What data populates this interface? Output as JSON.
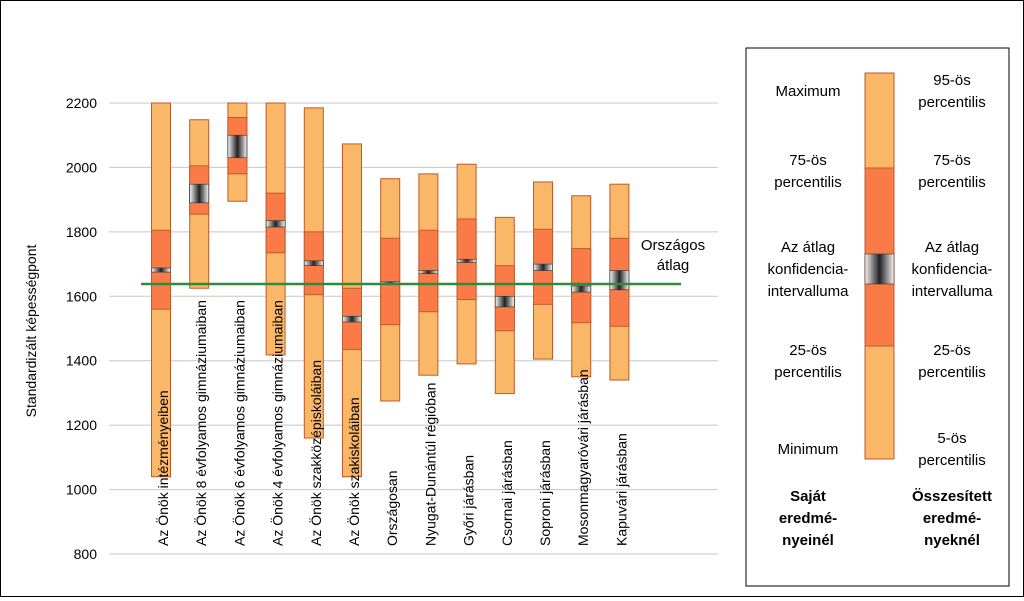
{
  "chart_data": {
    "type": "box",
    "ylabel": "Standardizált képességpont",
    "ylim": [
      800,
      2200
    ],
    "yticks": [
      800,
      1000,
      1200,
      1400,
      1600,
      1800,
      2000,
      2200
    ],
    "national_average": 1638,
    "national_average_label": [
      "Országos",
      "átlag"
    ],
    "colors": {
      "outer": "#f9b767",
      "inner": "#fa7b47",
      "border": "#c05a2a",
      "avg_line": "#2e8b3e",
      "grid": "#c8c8c8"
    },
    "categories": [
      {
        "label": "Az Önök intézményeiben",
        "min": 1040,
        "p25": 1560,
        "ci_low": 1675,
        "ci_high": 1688,
        "p75": 1805,
        "max": 2200
      },
      {
        "label": "Az Önök 8 évfolyamos gimnáziumaiban",
        "min": 1625,
        "p25": 1855,
        "ci_low": 1890,
        "ci_high": 1948,
        "p75": 2005,
        "max": 2148
      },
      {
        "label": "Az Önök 6 évfolyamos gimnáziumaiban",
        "min": 1895,
        "p25": 1980,
        "ci_low": 2030,
        "ci_high": 2100,
        "p75": 2155,
        "max": 2200
      },
      {
        "label": "Az Önök 4 évfolyamos gimnáziumaiban",
        "min": 1418,
        "p25": 1735,
        "ci_low": 1815,
        "ci_high": 1835,
        "p75": 1920,
        "max": 2200
      },
      {
        "label": "Az Önök szakközépiskoláiban",
        "min": 1160,
        "p25": 1605,
        "ci_low": 1695,
        "ci_high": 1710,
        "p75": 1800,
        "max": 2185
      },
      {
        "label": "Az Önök szakiskoláiban",
        "min": 1040,
        "p25": 1435,
        "ci_low": 1520,
        "ci_high": 1538,
        "p75": 1625,
        "max": 2073
      },
      {
        "label": "Országosan",
        "min": 1275,
        "p25": 1512,
        "ci_low": 1640,
        "ci_high": 1645,
        "p75": 1780,
        "max": 1965
      },
      {
        "label": "Nyugat-Dunántúl régióban",
        "min": 1355,
        "p25": 1552,
        "ci_low": 1670,
        "ci_high": 1680,
        "p75": 1805,
        "max": 1980
      },
      {
        "label": "Győri járásban",
        "min": 1390,
        "p25": 1590,
        "ci_low": 1705,
        "ci_high": 1715,
        "p75": 1840,
        "max": 2010
      },
      {
        "label": "Csornai járásban",
        "min": 1298,
        "p25": 1493,
        "ci_low": 1567,
        "ci_high": 1600,
        "p75": 1695,
        "max": 1845
      },
      {
        "label": "Soproni járásban",
        "min": 1405,
        "p25": 1575,
        "ci_low": 1680,
        "ci_high": 1700,
        "p75": 1808,
        "max": 1955
      },
      {
        "label": "Mosonmagyaróvári járásban",
        "min": 1350,
        "p25": 1518,
        "ci_low": 1613,
        "ci_high": 1632,
        "p75": 1748,
        "max": 1912
      },
      {
        "label": "Kapuvári járásban",
        "min": 1340,
        "p25": 1507,
        "ci_low": 1620,
        "ci_high": 1680,
        "p75": 1780,
        "max": 1948
      }
    ],
    "legend": {
      "left_labels": [
        "Maximum",
        "75-ös percentilis",
        "Az átlag konfidencia-intervalluma",
        "25-ös percentilis",
        "Minimum"
      ],
      "right_labels": [
        "95-ös percentilis",
        "75-ös percentilis",
        "Az átlag konfidencia-intervalluma",
        "25-ös percentilis",
        "5-ös percentilis"
      ],
      "left_title": "Saját eredmé-nyeinél",
      "right_title": "Összesített eredmé-nyeknél"
    }
  }
}
